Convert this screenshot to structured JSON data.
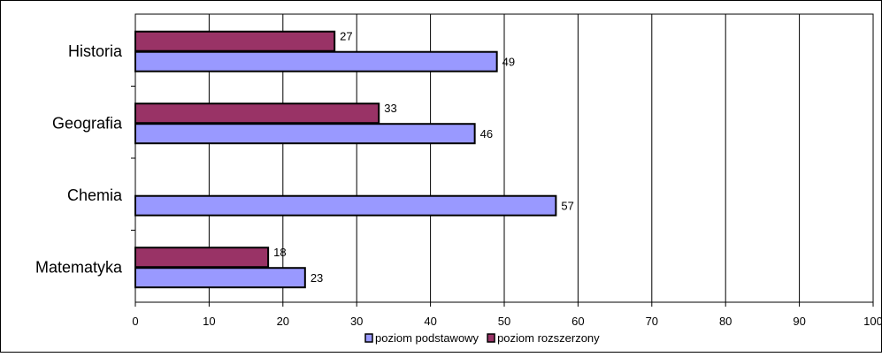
{
  "chart_data": {
    "type": "bar",
    "orientation": "horizontal",
    "categories": [
      "Historia",
      "Geografia",
      "Chemia",
      "Matematyka"
    ],
    "series": [
      {
        "name": "poziom podstawowy",
        "color": "#9999ff",
        "values": [
          49,
          46,
          57,
          23
        ]
      },
      {
        "name": "poziom rozszerzony",
        "color": "#993366",
        "values": [
          27,
          33,
          null,
          18
        ]
      }
    ],
    "xlim": [
      0,
      100
    ],
    "xticks": [
      "0",
      "10",
      "20",
      "30",
      "40",
      "50",
      "60",
      "70",
      "80",
      "90",
      "100"
    ],
    "grid": true,
    "legend_position": "bottom",
    "title": "",
    "xlabel": "",
    "ylabel": ""
  }
}
